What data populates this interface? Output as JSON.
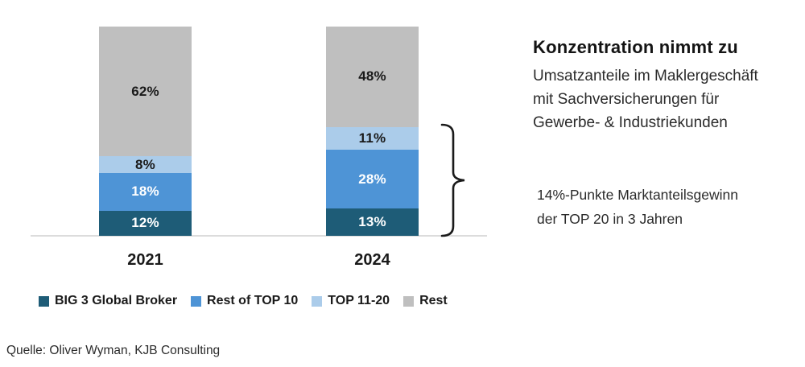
{
  "title": "Konzentration nimmt zu",
  "subtitle_lines": [
    "Umsatzanteile im Maklergeschäft",
    "mit Sachversicherungen für",
    "Gewerbe- & Industriekunden"
  ],
  "annotation_lines": [
    "14%-Punkte Marktanteilsgewinn",
    "der TOP 20 in 3 Jahren"
  ],
  "source": "Quelle: Oliver Wyman, KJB Consulting",
  "colors": {
    "big3": "#1e5c77",
    "rest_top10": "#4e94d6",
    "top11_20": "#abccea",
    "rest": "#bfbfbf",
    "axis_line": "#dcdcdc",
    "dark_label": "#1a1a1a",
    "light_label": "#ffffff",
    "brace": "#1a1a1a"
  },
  "chart_data": {
    "type": "bar",
    "stacked": true,
    "categories": [
      "2021",
      "2024"
    ],
    "series": [
      {
        "name": "BIG 3 Global Broker",
        "color": "#1e5c77",
        "label_color": "#ffffff",
        "values": [
          12,
          13
        ]
      },
      {
        "name": "Rest of TOP 10",
        "color": "#4e94d6",
        "label_color": "#ffffff",
        "values": [
          18,
          28
        ]
      },
      {
        "name": "TOP 11-20",
        "color": "#abccea",
        "label_color": "#1a1a1a",
        "values": [
          8,
          11
        ]
      },
      {
        "name": "Rest",
        "color": "#bfbfbf",
        "label_color": "#1a1a1a",
        "values": [
          62,
          48
        ]
      }
    ],
    "value_suffix": "%",
    "ylim": [
      0,
      100
    ],
    "grid": false,
    "legend_position": "bottom",
    "annotation": "14%-Punkte Marktanteilsgewinn der TOP 20 in 3 Jahren (geschweifte Klammer um TOP-20-Segmente 2024)"
  }
}
